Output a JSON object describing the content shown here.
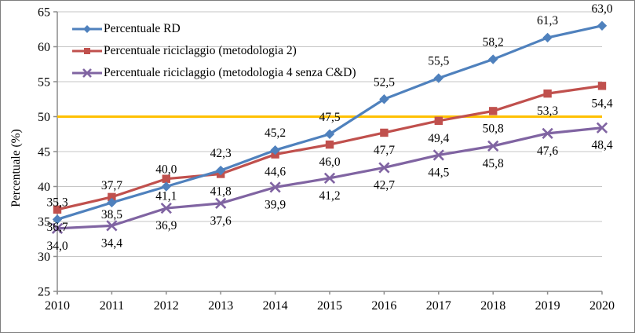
{
  "chart_data": {
    "type": "line",
    "title": "",
    "xlabel": "",
    "ylabel": "Percentuale (%)",
    "x": [
      "2010",
      "2011",
      "2012",
      "2013",
      "2014",
      "2015",
      "2016",
      "2017",
      "2018",
      "2019",
      "2020"
    ],
    "ylim": [
      25,
      65
    ],
    "y_ticks": [
      25,
      30,
      35,
      40,
      45,
      50,
      55,
      60,
      65
    ],
    "grid": true,
    "legend_position": "top-left-inside",
    "decimal_separator": ",",
    "axis_color": "#8c8c8c",
    "gridline_color": "#c6c6c6",
    "text_color": "#000000",
    "series": [
      {
        "name": "Percentuale RD",
        "color": "#4F81BD",
        "marker": "diamond",
        "label_position": "above",
        "values": [
          35.3,
          37.7,
          40.0,
          42.3,
          45.2,
          47.5,
          52.5,
          55.5,
          58.2,
          61.3,
          63.0
        ]
      },
      {
        "name": "Percentuale riciclaggio (metodologia 2)",
        "color": "#C0504D",
        "marker": "square",
        "label_position": "below",
        "values": [
          36.7,
          38.5,
          41.1,
          41.8,
          44.6,
          46.0,
          47.7,
          49.4,
          50.8,
          53.3,
          54.4
        ]
      },
      {
        "name": "Percentuale riciclaggio (metodologia 4 senza C&D)",
        "color": "#8064A2",
        "marker": "x",
        "label_position": "below",
        "values": [
          34.0,
          34.4,
          36.9,
          37.6,
          39.9,
          41.2,
          42.7,
          44.5,
          45.8,
          47.6,
          48.4
        ]
      }
    ],
    "reference_line": {
      "value": 50,
      "color": "#FFC000"
    }
  }
}
